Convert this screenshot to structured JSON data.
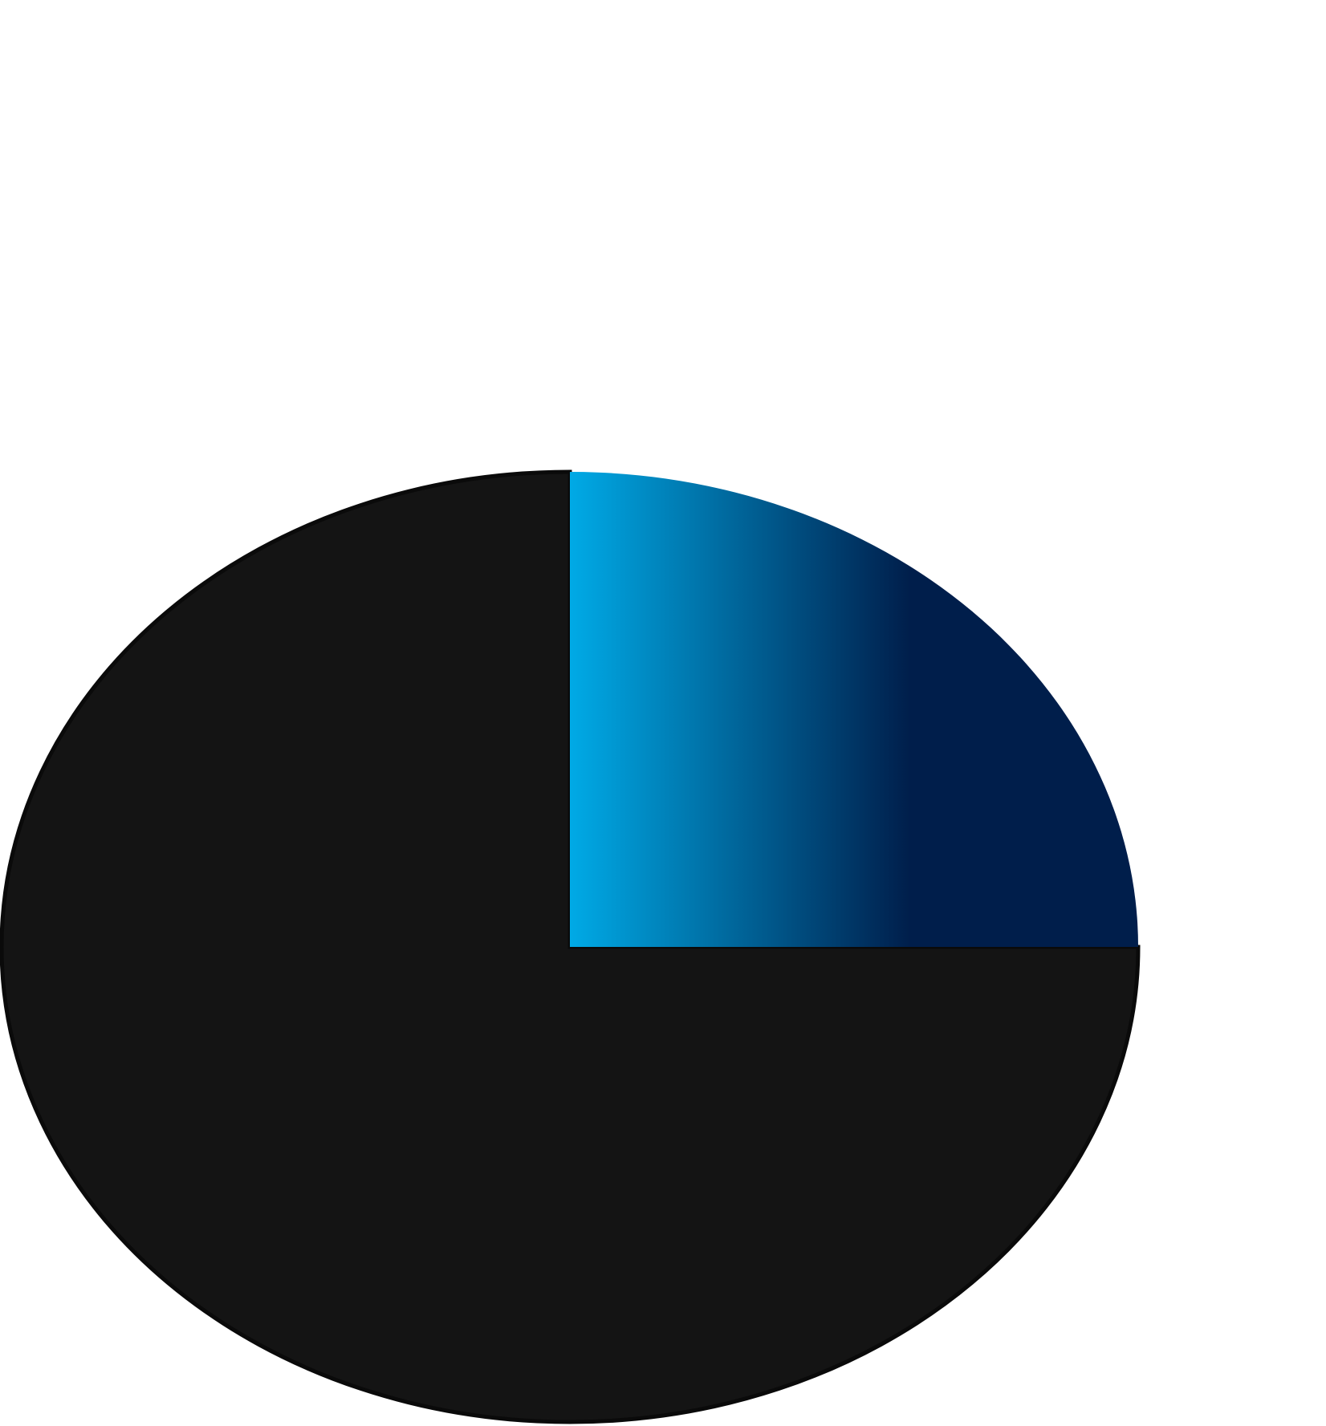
{
  "chart_data": {
    "type": "pie",
    "title": "",
    "slices": [
      {
        "value": 25,
        "color_start": "#00aae6",
        "color_end": "#001e4b",
        "fill": "horizontal-gradient"
      },
      {
        "value": 75,
        "color": "#141414"
      }
    ],
    "start_angle": "12 o'clock",
    "direction": "clockwise",
    "slice_outline_color": "#0a0a0a",
    "legend": "none",
    "data_labels": "none"
  }
}
